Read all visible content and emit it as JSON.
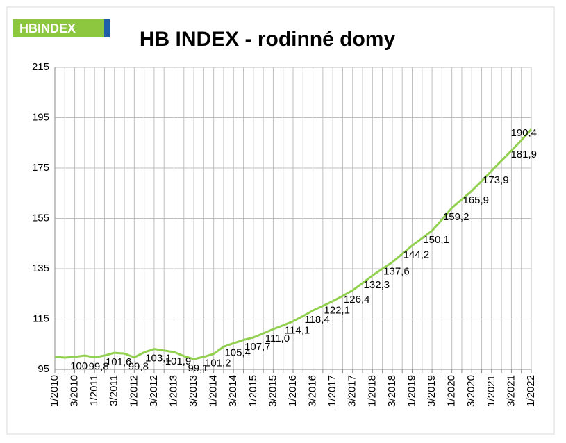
{
  "chart_data": {
    "type": "line",
    "title": "HB INDEX - rodinné domy",
    "logo": "HBINDEX",
    "categories": [
      "1/2010",
      null,
      "3/2010",
      null,
      "1/2011",
      null,
      "3/2011",
      null,
      "1/2012",
      null,
      "3/2012",
      null,
      "1/2013",
      null,
      "3/2013",
      null,
      "1/2014",
      null,
      "3/2014",
      null,
      "1/2015",
      null,
      "3/2015",
      null,
      "1/2016",
      null,
      "3/2016",
      null,
      "1/2017",
      null,
      "3/2017",
      null,
      "1/2018",
      null,
      "3/2018",
      null,
      "1/2019",
      null,
      "3/2019",
      null,
      "1/2020",
      null,
      "3/2020",
      null,
      "1/2021",
      null,
      "3/2021",
      null,
      "1/2022"
    ],
    "series": [
      {
        "color": "#92d050",
        "values": [
          100.0,
          99.7,
          100,
          100.5,
          99.8,
          100.5,
          101.6,
          101.3,
          99.8,
          101.8,
          103.1,
          102.5,
          101.9,
          100.3,
          99.1,
          100.0,
          101.2,
          104.0,
          105.4,
          106.7,
          107.7,
          109.3,
          111.0,
          112.5,
          114.1,
          116.2,
          118.4,
          120.2,
          122.1,
          124.2,
          126.4,
          129.3,
          132.3,
          135.0,
          137.6,
          140.9,
          144.2,
          147.1,
          150.1,
          154.5,
          159.2,
          162.5,
          165.9,
          169.8,
          173.9,
          177.9,
          181.9,
          186.0,
          190.4
        ],
        "value_labels": [
          null,
          null,
          "100",
          null,
          "99,8",
          null,
          "101,6",
          null,
          "99,8",
          null,
          "103,1",
          null,
          "101,9",
          null,
          "99,1",
          null,
          "101,2",
          null,
          "105,4",
          null,
          "107,7",
          null,
          "111,0",
          null,
          "114,1",
          null,
          "118,4",
          null,
          "122,1",
          null,
          "126,4",
          null,
          "132,3",
          null,
          "137,6",
          null,
          "144,2",
          null,
          "150,1",
          null,
          "159,2",
          null,
          "165,9",
          null,
          "173,9",
          null,
          "181,9",
          null,
          "190,4"
        ]
      }
    ],
    "ylim": [
      95,
      215
    ],
    "yticks": [
      95,
      115,
      135,
      155,
      175,
      195,
      215
    ],
    "grid": true
  }
}
